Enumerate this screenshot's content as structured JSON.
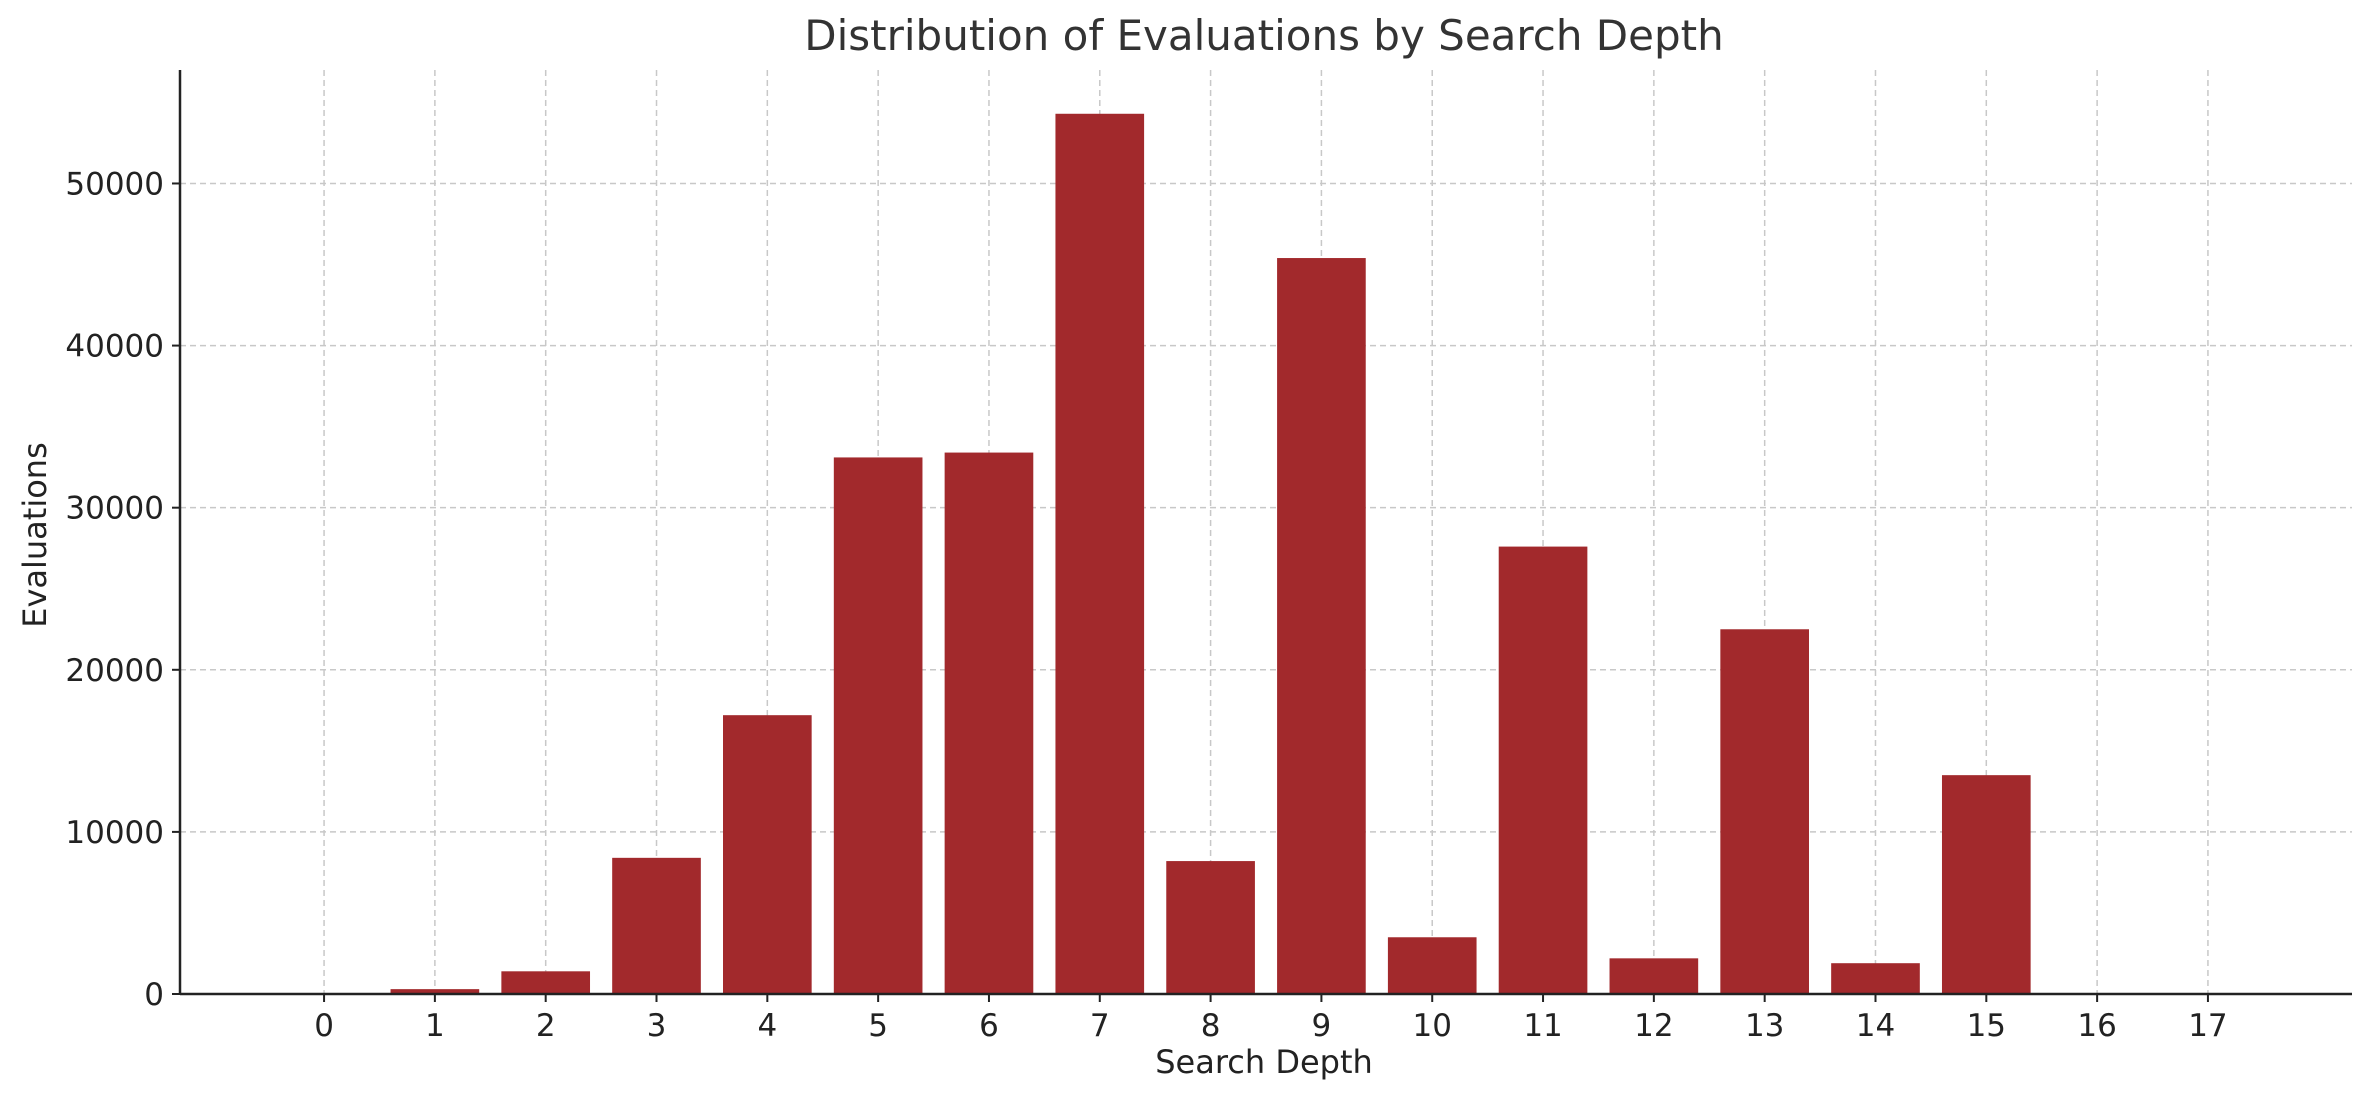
{
  "chart_data": {
    "type": "bar",
    "title": "Distribution of Evaluations by Search Depth",
    "xlabel": "Search Depth",
    "ylabel": "Evaluations",
    "categories": [
      "0",
      "1",
      "2",
      "3",
      "4",
      "5",
      "6",
      "7",
      "8",
      "9",
      "10",
      "11",
      "12",
      "13",
      "14",
      "15",
      "16",
      "17"
    ],
    "values": [
      0,
      300,
      1400,
      8400,
      17200,
      33100,
      33400,
      54300,
      8200,
      45400,
      3500,
      27600,
      2200,
      22500,
      1900,
      13500,
      0,
      0
    ],
    "x_range": [
      -1.3,
      18.3
    ],
    "ylim": [
      0,
      57000
    ],
    "yticks": [
      0,
      10000,
      20000,
      30000,
      40000,
      50000
    ],
    "ytick_labels": [
      "0",
      "10000",
      "20000",
      "30000",
      "40000",
      "50000"
    ],
    "bar_color": "#a2292c",
    "grid": true,
    "grid_color": "#c8c8c8",
    "axis_color": "#222222",
    "spines": [
      "left",
      "bottom"
    ]
  }
}
